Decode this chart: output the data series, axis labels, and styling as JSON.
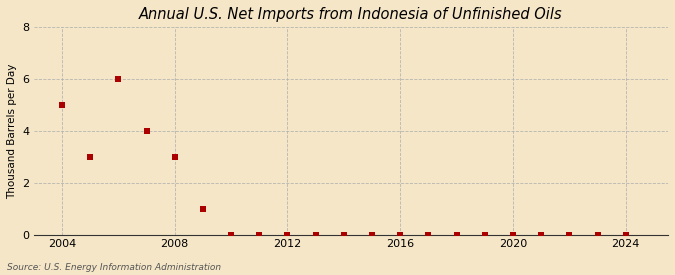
{
  "title": "Annual U.S. Net Imports from Indonesia of Unfinished Oils",
  "ylabel": "Thousand Barrels per Day",
  "source": "Source: U.S. Energy Information Administration",
  "background_color": "#f5e6c8",
  "plot_bg_color": "#f5e6c8",
  "marker_color": "#aa0000",
  "marker_size": 16,
  "xlim": [
    2003.0,
    2025.5
  ],
  "ylim": [
    0,
    8
  ],
  "yticks": [
    0,
    2,
    4,
    6,
    8
  ],
  "xticks": [
    2004,
    2008,
    2012,
    2016,
    2020,
    2024
  ],
  "data_x": [
    2004,
    2005,
    2006,
    2007,
    2008,
    2009,
    2010,
    2011,
    2012,
    2013,
    2014,
    2015,
    2016,
    2017,
    2018,
    2019,
    2020,
    2021,
    2022,
    2023,
    2024
  ],
  "data_y": [
    5.0,
    3.0,
    6.0,
    4.0,
    3.0,
    1.0,
    0.0,
    0.0,
    0.0,
    0.0,
    0.0,
    0.0,
    0.0,
    0.0,
    0.0,
    0.0,
    0.0,
    0.0,
    0.0,
    0.0,
    0.0
  ],
  "title_fontsize": 10.5,
  "ylabel_fontsize": 7.5,
  "tick_fontsize": 8,
  "source_fontsize": 6.5
}
